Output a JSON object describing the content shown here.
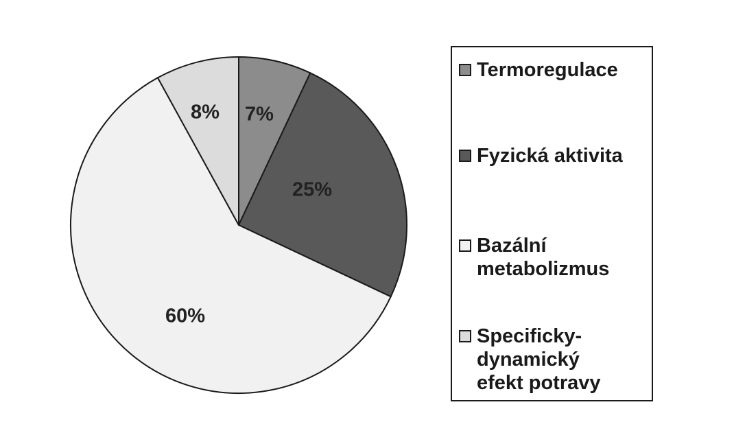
{
  "chart_data": {
    "type": "pie",
    "categories": [
      "Termoregulace",
      "Fyzická aktivita",
      "Bazální metabolizmus",
      "Specificky-dynamický efekt potravy"
    ],
    "values": [
      7,
      25,
      60,
      8
    ],
    "value_labels": [
      "7%",
      "25%",
      "60%",
      "8%"
    ],
    "colors": [
      "#8c8c8c",
      "#595959",
      "#f1f1f1",
      "#dcdcdc"
    ],
    "start_angle_deg": 0,
    "direction": "clockwise",
    "title": "",
    "legend_placement": "right"
  },
  "legend": {
    "items": [
      {
        "text": "Termoregulace",
        "color": "#8c8c8c"
      },
      {
        "text": "Fyzická aktivita",
        "color": "#595959"
      },
      {
        "text": "Bazální metabolizmus",
        "color": "#f1f1f1"
      },
      {
        "text": "Specificky-dynamický efekt potravy",
        "color": "#dcdcdc"
      }
    ]
  }
}
